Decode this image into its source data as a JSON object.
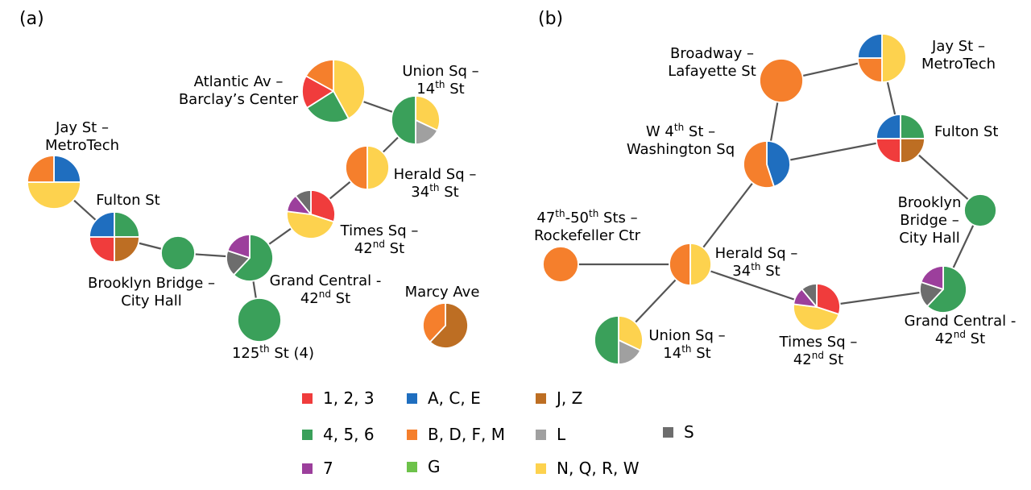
{
  "colors": {
    "red": "#f03c3c",
    "blue": "#1f6ebf",
    "brown": "#bd6e23",
    "green": "#3aa05a",
    "orange": "#f57f2c",
    "lgray": "#a0a0a0",
    "dgray": "#6d6d6d",
    "purple": "#9c3f9c",
    "lgreen": "#6dc24a",
    "yellow": "#fdd24e"
  },
  "panels": [
    {
      "id": "a",
      "tag": "(a)",
      "nodes": [
        {
          "id": "jay",
          "slices": [
            {
              "c": "blue",
              "p": 0.25
            },
            {
              "c": "yellow",
              "p": 0.5
            },
            {
              "c": "orange",
              "p": 0.25
            }
          ],
          "labelLines": [
            [
              {
                "t": "Jay St –"
              }
            ],
            [
              {
                "t": "MetroTech"
              }
            ]
          ]
        },
        {
          "id": "fulton",
          "slices": [
            {
              "c": "green",
              "p": 0.25
            },
            {
              "c": "brown",
              "p": 0.25
            },
            {
              "c": "red",
              "p": 0.25
            },
            {
              "c": "blue",
              "p": 0.25
            }
          ],
          "labelLines": [
            [
              {
                "t": "Fulton St"
              }
            ]
          ]
        },
        {
          "id": "bbch",
          "slices": [
            {
              "c": "green",
              "p": 1
            }
          ],
          "labelLines": [
            [
              {
                "t": "Brooklyn Bridge –"
              }
            ],
            [
              {
                "t": "City Hall"
              }
            ]
          ]
        },
        {
          "id": "gc",
          "slices": [
            {
              "c": "green",
              "p": 0.62
            },
            {
              "c": "dgray",
              "p": 0.18
            },
            {
              "c": "purple",
              "p": 0.2
            }
          ],
          "labelLines": [
            [
              {
                "t": "Grand Central -"
              }
            ],
            [
              {
                "t": "42"
              },
              {
                "t": "nd",
                "sup": true
              },
              {
                "t": " St"
              }
            ]
          ]
        },
        {
          "id": "s125",
          "slices": [
            {
              "c": "green",
              "p": 1
            }
          ],
          "labelLines": [
            [
              {
                "t": "125"
              },
              {
                "t": "th",
                "sup": true
              },
              {
                "t": " St (4)"
              }
            ]
          ]
        },
        {
          "id": "ts",
          "slices": [
            {
              "c": "red",
              "p": 0.3
            },
            {
              "c": "yellow",
              "p": 0.47
            },
            {
              "c": "purple",
              "p": 0.12
            },
            {
              "c": "dgray",
              "p": 0.11
            }
          ],
          "labelLines": [
            [
              {
                "t": "Times Sq –"
              }
            ],
            [
              {
                "t": "42"
              },
              {
                "t": "nd",
                "sup": true
              },
              {
                "t": " St"
              }
            ]
          ]
        },
        {
          "id": "hs",
          "slices": [
            {
              "c": "yellow",
              "p": 0.5
            },
            {
              "c": "orange",
              "p": 0.5
            }
          ],
          "labelLines": [
            [
              {
                "t": "Herald Sq –"
              }
            ],
            [
              {
                "t": "34"
              },
              {
                "t": "th",
                "sup": true
              },
              {
                "t": " St"
              }
            ]
          ]
        },
        {
          "id": "us",
          "slices": [
            {
              "c": "yellow",
              "p": 0.32
            },
            {
              "c": "lgray",
              "p": 0.18
            },
            {
              "c": "green",
              "p": 0.5
            }
          ],
          "labelLines": [
            [
              {
                "t": "Union Sq –"
              }
            ],
            [
              {
                "t": "14"
              },
              {
                "t": "th",
                "sup": true
              },
              {
                "t": " St"
              }
            ]
          ]
        },
        {
          "id": "atl",
          "slices": [
            {
              "c": "yellow",
              "p": 0.42
            },
            {
              "c": "green",
              "p": 0.24
            },
            {
              "c": "red",
              "p": 0.17
            },
            {
              "c": "orange",
              "p": 0.17
            }
          ],
          "labelLines": [
            [
              {
                "t": "Atlantic Av –"
              }
            ],
            [
              {
                "t": "Barclay’s Center"
              }
            ]
          ]
        },
        {
          "id": "marcy",
          "slices": [
            {
              "c": "brown",
              "p": 0.62
            },
            {
              "c": "orange",
              "p": 0.38
            }
          ],
          "labelLines": [
            [
              {
                "t": "Marcy Ave"
              }
            ]
          ]
        }
      ],
      "edges": [
        [
          "jay",
          "fulton"
        ],
        [
          "fulton",
          "bbch"
        ],
        [
          "bbch",
          "gc"
        ],
        [
          "gc",
          "s125"
        ],
        [
          "gc",
          "ts"
        ],
        [
          "ts",
          "hs"
        ],
        [
          "hs",
          "us"
        ],
        [
          "us",
          "atl"
        ]
      ]
    },
    {
      "id": "b",
      "tag": "(b)",
      "nodes": [
        {
          "id": "bl",
          "slices": [
            {
              "c": "orange",
              "p": 1
            }
          ],
          "labelLines": [
            [
              {
                "t": "Broadway –"
              }
            ],
            [
              {
                "t": "Lafayette St"
              }
            ]
          ]
        },
        {
          "id": "jay",
          "slices": [
            {
              "c": "yellow",
              "p": 0.5
            },
            {
              "c": "orange",
              "p": 0.25
            },
            {
              "c": "blue",
              "p": 0.25
            }
          ],
          "labelLines": [
            [
              {
                "t": "Jay St –"
              }
            ],
            [
              {
                "t": "MetroTech"
              }
            ]
          ]
        },
        {
          "id": "w4",
          "slices": [
            {
              "c": "blue",
              "p": 0.45
            },
            {
              "c": "orange",
              "p": 0.55
            }
          ],
          "labelLines": [
            [
              {
                "t": "W 4"
              },
              {
                "t": "th",
                "sup": true
              },
              {
                "t": " St –"
              }
            ],
            [
              {
                "t": "Washington Sq"
              }
            ]
          ]
        },
        {
          "id": "fulton",
          "slices": [
            {
              "c": "green",
              "p": 0.25
            },
            {
              "c": "brown",
              "p": 0.25
            },
            {
              "c": "red",
              "p": 0.25
            },
            {
              "c": "blue",
              "p": 0.25
            }
          ],
          "labelLines": [
            [
              {
                "t": "Fulton St"
              }
            ]
          ]
        },
        {
          "id": "bbch",
          "slices": [
            {
              "c": "green",
              "p": 1
            }
          ],
          "labelLines": [
            [
              {
                "t": "Brooklyn"
              }
            ],
            [
              {
                "t": "Bridge –"
              }
            ],
            [
              {
                "t": "City Hall"
              }
            ]
          ]
        },
        {
          "id": "rock",
          "slices": [
            {
              "c": "orange",
              "p": 1
            }
          ],
          "labelLines": [
            [
              {
                "t": "47"
              },
              {
                "t": "th",
                "sup": true
              },
              {
                "t": "-50"
              },
              {
                "t": "th",
                "sup": true
              },
              {
                "t": " Sts –"
              }
            ],
            [
              {
                "t": "Rockefeller Ctr"
              }
            ]
          ]
        },
        {
          "id": "hs",
          "slices": [
            {
              "c": "yellow",
              "p": 0.5
            },
            {
              "c": "orange",
              "p": 0.5
            }
          ],
          "labelLines": [
            [
              {
                "t": "Herald Sq –"
              }
            ],
            [
              {
                "t": "34"
              },
              {
                "t": "th",
                "sup": true
              },
              {
                "t": " St"
              }
            ]
          ]
        },
        {
          "id": "gc",
          "slices": [
            {
              "c": "green",
              "p": 0.62
            },
            {
              "c": "dgray",
              "p": 0.18
            },
            {
              "c": "purple",
              "p": 0.2
            }
          ],
          "labelLines": [
            [
              {
                "t": "Grand Central -"
              }
            ],
            [
              {
                "t": "42"
              },
              {
                "t": "nd",
                "sup": true
              },
              {
                "t": " St"
              }
            ]
          ]
        },
        {
          "id": "ts",
          "slices": [
            {
              "c": "red",
              "p": 0.3
            },
            {
              "c": "yellow",
              "p": 0.47
            },
            {
              "c": "purple",
              "p": 0.12
            },
            {
              "c": "dgray",
              "p": 0.11
            }
          ],
          "labelLines": [
            [
              {
                "t": "Times Sq –"
              }
            ],
            [
              {
                "t": "42"
              },
              {
                "t": "nd",
                "sup": true
              },
              {
                "t": " St"
              }
            ]
          ]
        },
        {
          "id": "us",
          "slices": [
            {
              "c": "yellow",
              "p": 0.32
            },
            {
              "c": "lgray",
              "p": 0.18
            },
            {
              "c": "green",
              "p": 0.5
            }
          ],
          "labelLines": [
            [
              {
                "t": "Union Sq –"
              }
            ],
            [
              {
                "t": "14"
              },
              {
                "t": "th",
                "sup": true
              },
              {
                "t": " St"
              }
            ]
          ]
        }
      ],
      "edges": [
        [
          "bl",
          "jay"
        ],
        [
          "bl",
          "w4"
        ],
        [
          "jay",
          "fulton"
        ],
        [
          "w4",
          "fulton"
        ],
        [
          "w4",
          "hs"
        ],
        [
          "fulton",
          "bbch"
        ],
        [
          "bbch",
          "gc"
        ],
        [
          "gc",
          "ts"
        ],
        [
          "ts",
          "hs"
        ],
        [
          "hs",
          "rock"
        ],
        [
          "hs",
          "us"
        ]
      ]
    }
  ],
  "legend": [
    {
      "color": "red",
      "label": "1, 2, 3"
    },
    {
      "color": "blue",
      "label": "A, C, E"
    },
    {
      "color": "brown",
      "label": "J, Z"
    },
    {
      "color": "green",
      "label": "4, 5, 6"
    },
    {
      "color": "orange",
      "label": "B, D, F, M"
    },
    {
      "color": "lgray",
      "label": "L"
    },
    {
      "color": "dgray",
      "label": "S"
    },
    {
      "color": "purple",
      "label": "7"
    },
    {
      "color": "lgreen",
      "label": "G"
    },
    {
      "color": "yellow",
      "label": "N, Q, R, W"
    }
  ]
}
